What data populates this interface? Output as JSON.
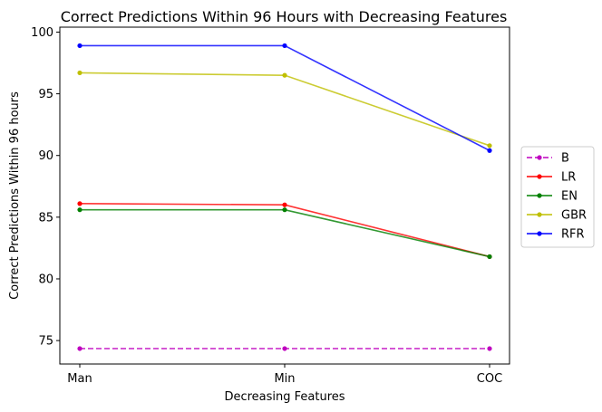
{
  "chart_data": {
    "type": "line",
    "title": "Correct Predictions Within 96 Hours with Decreasing Features",
    "xlabel": "Decreasing Features",
    "ylabel": "Correct Predictions Within 96 hours",
    "categories": [
      "Man",
      "Min",
      "COC"
    ],
    "ylim": [
      73.1,
      100.4
    ],
    "yticks": [
      75,
      80,
      85,
      90,
      95,
      100
    ],
    "grid": false,
    "legend_position": "right",
    "series": [
      {
        "name": "B",
        "color": "#bf00bf",
        "dashed": true,
        "values": [
          74.35,
          74.35,
          74.35
        ]
      },
      {
        "name": "LR",
        "color": "#ff0000",
        "dashed": false,
        "values": [
          86.1,
          86.0,
          81.8
        ]
      },
      {
        "name": "EN",
        "color": "#008000",
        "dashed": false,
        "values": [
          85.6,
          85.6,
          81.8
        ]
      },
      {
        "name": "GBR",
        "color": "#bfbf00",
        "dashed": false,
        "values": [
          96.7,
          96.5,
          90.8
        ]
      },
      {
        "name": "RFR",
        "color": "#0000ff",
        "dashed": false,
        "values": [
          98.9,
          98.9,
          90.4
        ]
      }
    ]
  }
}
